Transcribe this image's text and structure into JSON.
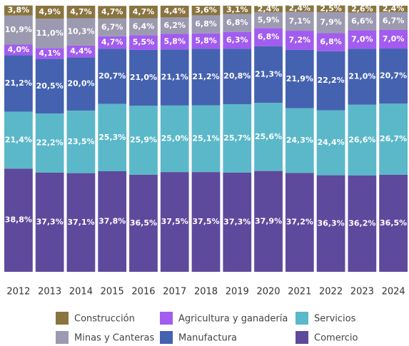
{
  "chart_data": {
    "type": "stacked-bar",
    "categories": [
      "2012",
      "2013",
      "2014",
      "2015",
      "2016",
      "2017",
      "2018",
      "2019",
      "2020",
      "2021",
      "2022",
      "2023",
      "2024"
    ],
    "ylim": [
      0,
      100
    ],
    "series": [
      {
        "name": "Comercio",
        "color": "#5e4a9c",
        "values": [
          38.8,
          37.3,
          37.1,
          37.8,
          36.5,
          37.5,
          37.5,
          37.3,
          37.9,
          37.2,
          36.3,
          36.2,
          36.5
        ],
        "value_labels": [
          "38,8%",
          "37,3%",
          "37,1%",
          "37,8%",
          "36,5%",
          "37,5%",
          "37,5%",
          "37,3%",
          "37,9%",
          "37,2%",
          "36,3%",
          "36,2%",
          "36,5%"
        ]
      },
      {
        "name": "Servicios",
        "color": "#5bb8c9",
        "values": [
          21.4,
          22.2,
          23.5,
          25.3,
          25.9,
          25.0,
          25.1,
          25.7,
          25.6,
          24.3,
          24.4,
          26.6,
          26.7
        ],
        "value_labels": [
          "21,4%",
          "22,2%",
          "23,5%",
          "25,3%",
          "25,9%",
          "25,0%",
          "25,1%",
          "25,7%",
          "25,6%",
          "24,3%",
          "24,4%",
          "26,6%",
          "26,7%"
        ]
      },
      {
        "name": "Manufactura",
        "color": "#4562b0",
        "values": [
          21.2,
          20.5,
          20.0,
          20.7,
          21.0,
          21.1,
          21.2,
          20.8,
          21.3,
          21.9,
          22.2,
          21.0,
          20.7
        ],
        "value_labels": [
          "21,2%",
          "20,5%",
          "20,0%",
          "20,7%",
          "21,0%",
          "21,1%",
          "21,2%",
          "20,8%",
          "21,3%",
          "21,9%",
          "22,2%",
          "21,0%",
          "20,7%"
        ]
      },
      {
        "name": "Agricultura y ganadería",
        "color": "#a25cf0",
        "values": [
          4.0,
          4.1,
          4.4,
          4.7,
          5.5,
          5.8,
          5.8,
          6.3,
          6.8,
          7.2,
          6.8,
          7.0,
          7.0
        ],
        "value_labels": [
          "4,0%",
          "4,1%",
          "4,4%",
          "4,7%",
          "5,5%",
          "5,8%",
          "5,8%",
          "6,3%",
          "6,8%",
          "7,2%",
          "6,8%",
          "7,0%",
          "7,0%"
        ]
      },
      {
        "name": "Minas y Canteras",
        "color": "#9c9ab0",
        "values": [
          10.9,
          11.0,
          10.3,
          6.7,
          6.4,
          6.2,
          6.8,
          6.8,
          5.9,
          7.1,
          7.9,
          6.6,
          6.7
        ],
        "value_labels": [
          "10,9%",
          "11,0%",
          "10,3%",
          "6,7%",
          "6,4%",
          "6,2%",
          "6,8%",
          "6,8%",
          "5,9%",
          "7,1%",
          "7,9%",
          "6,6%",
          "6,7%"
        ]
      },
      {
        "name": "Construcción",
        "color": "#8a7540",
        "values": [
          3.8,
          4.9,
          4.7,
          4.7,
          4.7,
          4.4,
          3.6,
          3.1,
          2.4,
          2.4,
          2.5,
          2.6,
          2.4
        ],
        "value_labels": [
          "3,8%",
          "4,9%",
          "4,7%",
          "4,7%",
          "4,7%",
          "4,4%",
          "3,6%",
          "3,1%",
          "2,4%",
          "2,4%",
          "2,5%",
          "2,6%",
          "2,4%"
        ]
      }
    ]
  }
}
